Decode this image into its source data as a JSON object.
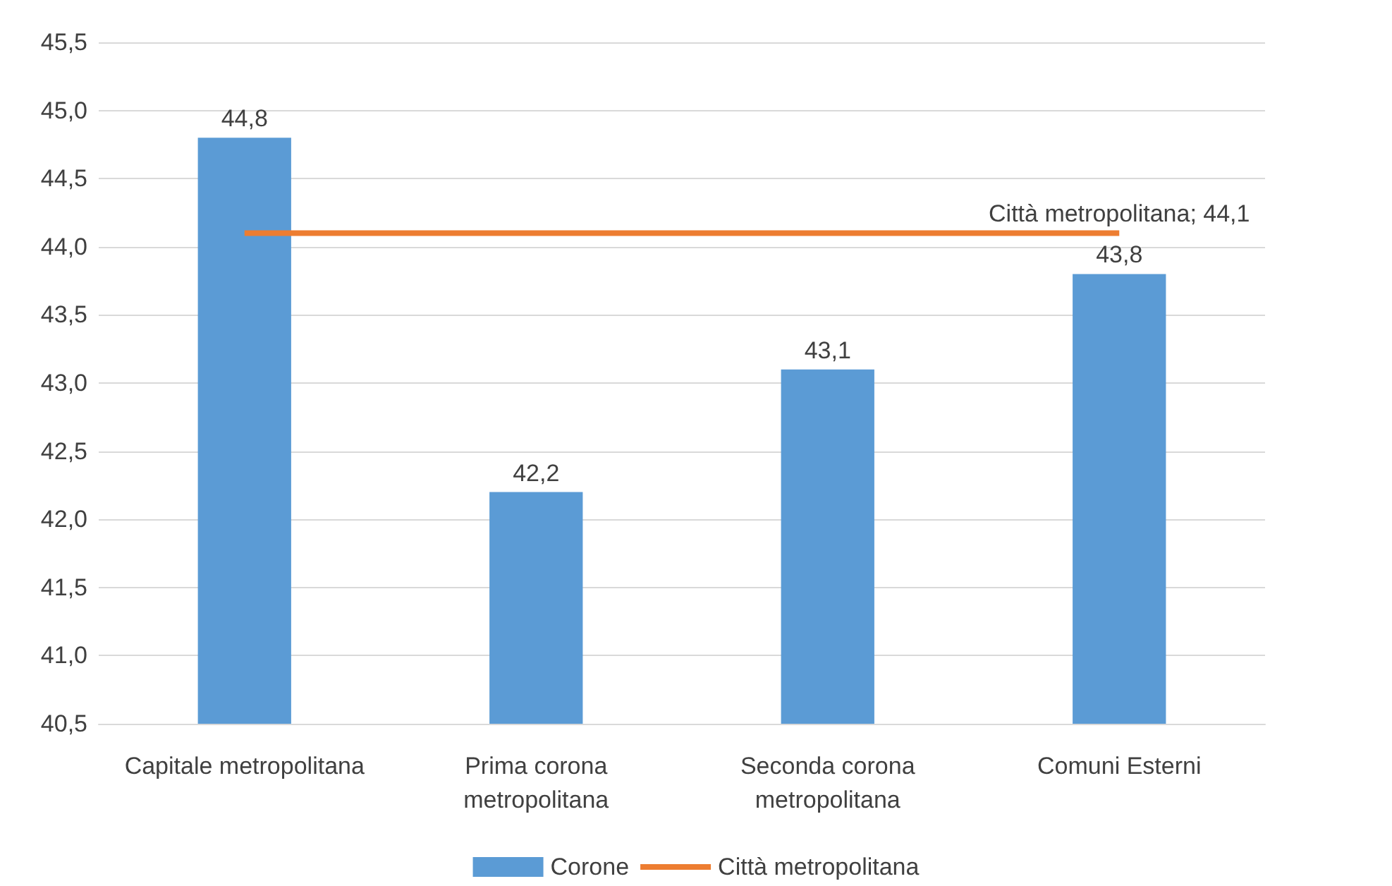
{
  "chart_data": {
    "type": "bar",
    "categories": [
      "Capitale metropolitana",
      "Prima corona\nmetropolitana",
      "Seconda corona\nmetropolitana",
      "Comuni Esterni"
    ],
    "series": [
      {
        "name": "Corone",
        "color": "#5b9bd5",
        "values": [
          44.8,
          42.2,
          43.1,
          43.8
        ],
        "value_labels": [
          "44,8",
          "42,2",
          "43,1",
          "43,8"
        ]
      },
      {
        "name": "Città metropolitana",
        "type": "line",
        "color": "#ed7d31",
        "values": [
          44.1,
          44.1,
          44.1,
          44.1
        ],
        "value_labels": [
          null,
          null,
          null,
          "Città metropolitana; 44,1"
        ]
      }
    ],
    "ylim": [
      40.5,
      45.5
    ],
    "yticks": [
      {
        "value": 40.5,
        "label": "40,5"
      },
      {
        "value": 41,
        "label": "41,0"
      },
      {
        "value": 41.5,
        "label": "41,5"
      },
      {
        "value": 42,
        "label": "42,0"
      },
      {
        "value": 42.5,
        "label": "42,5"
      },
      {
        "value": 43,
        "label": "43,0"
      },
      {
        "value": 43.5,
        "label": "43,5"
      },
      {
        "value": 44,
        "label": "44,0"
      },
      {
        "value": 44.5,
        "label": "44,5"
      },
      {
        "value": 45,
        "label": "45,0"
      },
      {
        "value": 45.5,
        "label": "45,5"
      }
    ],
    "grid": "y",
    "legend": "bottom",
    "marker": "none"
  }
}
